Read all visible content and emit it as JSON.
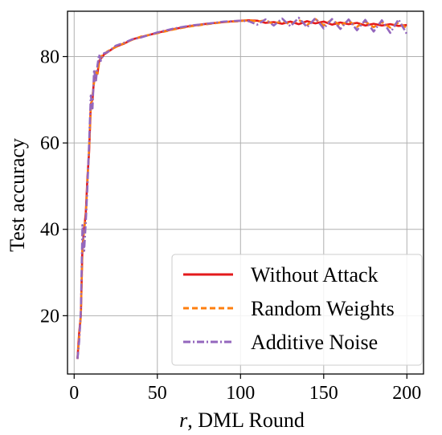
{
  "chart_data": {
    "type": "line",
    "title": "",
    "xlabel": {
      "italic": "r",
      "rest": ", DML Round"
    },
    "ylabel": "Test accuracy",
    "xlim": [
      -4,
      210
    ],
    "ylim": [
      6.5,
      90.5
    ],
    "xticks": [
      0,
      50,
      100,
      150,
      200
    ],
    "yticks": [
      20,
      40,
      60,
      80
    ],
    "grid": true,
    "legend_position": "lower-right",
    "series": [
      {
        "name": "Without Attack",
        "color": "#e31a1c",
        "dash": "solid",
        "x": [
          2,
          3,
          4,
          5,
          6,
          7,
          8,
          9,
          10,
          11,
          12,
          13,
          14,
          15,
          16,
          18,
          20,
          25,
          30,
          35,
          40,
          50,
          60,
          70,
          80,
          90,
          100,
          105,
          110,
          115,
          120,
          125,
          130,
          135,
          140,
          145,
          150,
          155,
          160,
          165,
          170,
          175,
          180,
          185,
          190,
          195,
          200
        ],
        "y": [
          10,
          16,
          20,
          36,
          40,
          44,
          52,
          58,
          69,
          70,
          75,
          76,
          76,
          79,
          79.5,
          80.5,
          81,
          82.3,
          83,
          84,
          84.5,
          85.5,
          86.4,
          87.1,
          87.6,
          88,
          88.3,
          88.4,
          88.3,
          87.8,
          88,
          87.6,
          88.1,
          87.5,
          88.2,
          87.7,
          88.1,
          87.4,
          87.9,
          87.5,
          87.8,
          87.2,
          87.6,
          87.2,
          87.5,
          87.1,
          87.3
        ]
      },
      {
        "name": "Random Weights",
        "color": "#ff7f0e",
        "dash": "dashed",
        "x": [
          2,
          3,
          4,
          5,
          6,
          7,
          8,
          9,
          10,
          11,
          12,
          13,
          14,
          15,
          16,
          18,
          20,
          25,
          30,
          35,
          40,
          50,
          60,
          70,
          80,
          90,
          100,
          105,
          110,
          115,
          120,
          125,
          130,
          135,
          140,
          145,
          150,
          155,
          160,
          165,
          170,
          175,
          180,
          185,
          190,
          195,
          200
        ],
        "y": [
          10,
          15,
          20,
          35,
          40,
          43,
          51,
          59,
          68,
          71,
          74,
          77,
          76,
          78.5,
          80,
          80.5,
          81.2,
          82.2,
          83.1,
          83.9,
          84.6,
          85.4,
          86.3,
          87,
          87.5,
          88,
          88.2,
          88.5,
          88.1,
          88.4,
          87.5,
          88.3,
          87.4,
          88.5,
          87.3,
          88.7,
          87.2,
          88.6,
          87.1,
          88.3,
          86.9,
          88.1,
          86.8,
          88,
          86.7,
          87.9,
          86.6
        ]
      },
      {
        "name": "Additive Noise",
        "color": "#9467bd",
        "dash": "dashdot",
        "x": [
          2,
          3,
          4,
          5,
          6,
          7,
          8,
          9,
          10,
          11,
          12,
          13,
          14,
          15,
          16,
          18,
          20,
          25,
          30,
          35,
          40,
          50,
          60,
          70,
          80,
          90,
          100,
          105,
          110,
          115,
          120,
          125,
          130,
          135,
          140,
          145,
          150,
          155,
          160,
          165,
          170,
          175,
          180,
          185,
          190,
          195,
          200
        ],
        "y": [
          10,
          14,
          21,
          41,
          35,
          42,
          50,
          60,
          71,
          68,
          77,
          74,
          78,
          80.5,
          79,
          80.8,
          81,
          82.5,
          83.2,
          84,
          84.4,
          85.6,
          86.5,
          87.2,
          87.6,
          88.1,
          88.3,
          88.2,
          87.4,
          88.6,
          87.2,
          88.8,
          87,
          89,
          86.8,
          88.9,
          86.5,
          88.7,
          86.4,
          88.6,
          86.1,
          88.5,
          85.8,
          88.4,
          85.5,
          88.6,
          85.2
        ]
      }
    ]
  }
}
